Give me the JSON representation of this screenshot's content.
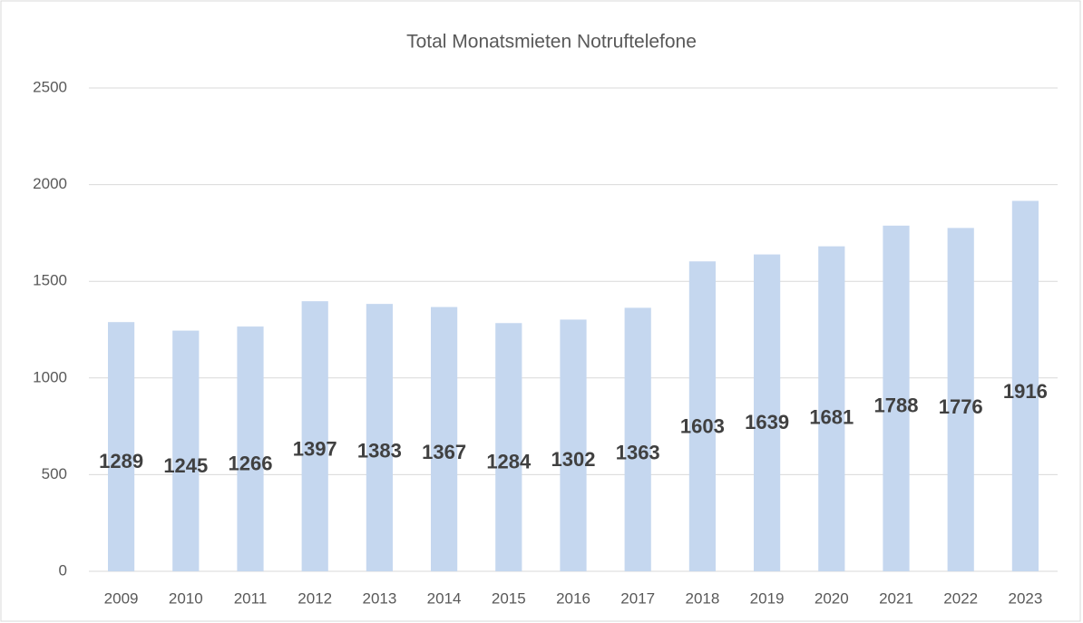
{
  "chart_data": {
    "type": "bar",
    "title": "Total Monatsmieten Notruftelefone",
    "categories": [
      "2009",
      "2010",
      "2011",
      "2012",
      "2013",
      "2014",
      "2015",
      "2016",
      "2017",
      "2018",
      "2019",
      "2020",
      "2021",
      "2022",
      "2023"
    ],
    "values": [
      1289,
      1245,
      1266,
      1397,
      1383,
      1367,
      1284,
      1302,
      1363,
      1603,
      1639,
      1681,
      1788,
      1776,
      1916
    ],
    "color": "#c5d7ef",
    "ylim": [
      0,
      2500
    ],
    "yticks": [
      0,
      500,
      1000,
      1500,
      2000,
      2500
    ],
    "grid": true
  }
}
